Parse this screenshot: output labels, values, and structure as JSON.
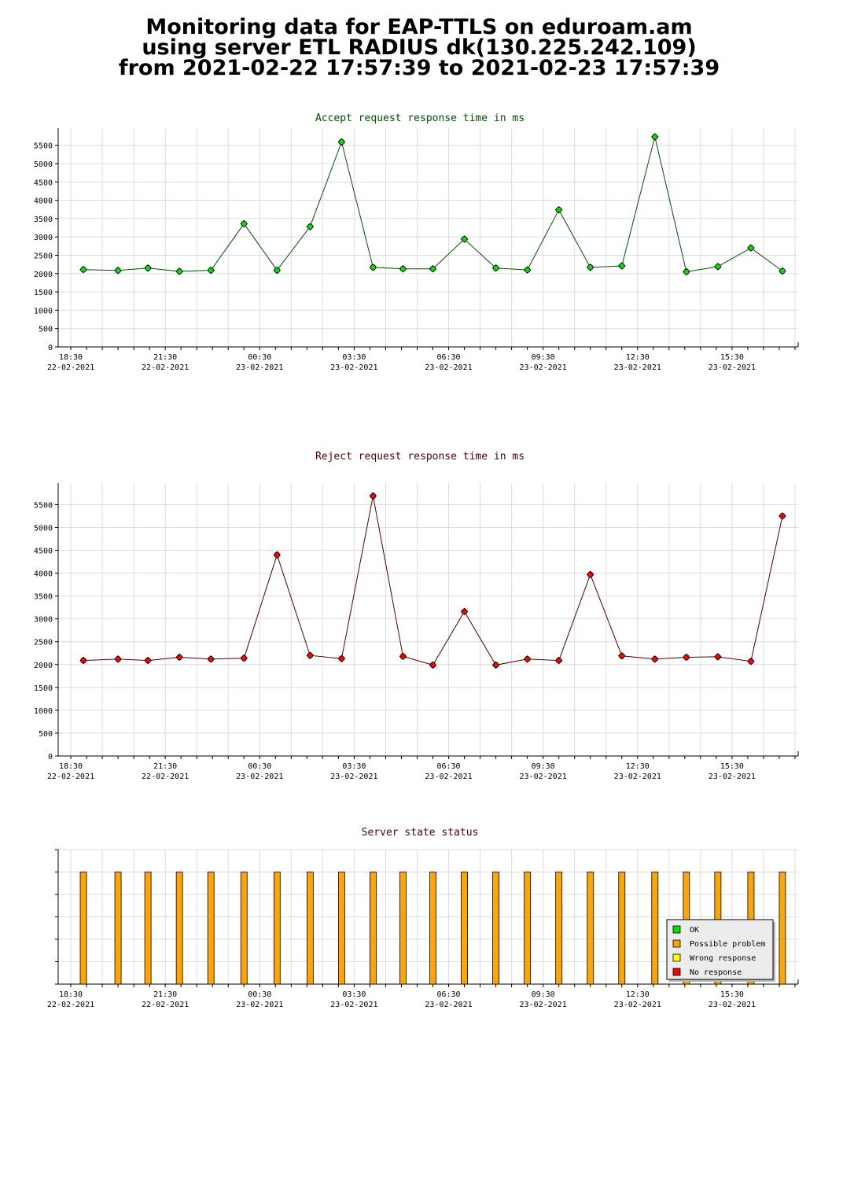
{
  "header": {
    "title_line1": "Monitoring data for EAP-TTLS on eduroam.am",
    "title_line2": "using server ETL RADIUS dk(130.225.242.109)",
    "title_line3": "from 2021-02-22 17:57:39 to 2021-02-23 17:57:39"
  },
  "x_ticks": [
    {
      "time": "18:30",
      "date": "22-02-2021",
      "h": 18.5
    },
    {
      "time": "21:30",
      "date": "22-02-2021",
      "h": 21.5
    },
    {
      "time": "00:30",
      "date": "23-02-2021",
      "h": 24.5
    },
    {
      "time": "03:30",
      "date": "23-02-2021",
      "h": 27.5
    },
    {
      "time": "06:30",
      "date": "23-02-2021",
      "h": 30.5
    },
    {
      "time": "09:30",
      "date": "23-02-2021",
      "h": 33.5
    },
    {
      "time": "12:30",
      "date": "23-02-2021",
      "h": 36.5
    },
    {
      "time": "15:30",
      "date": "23-02-2021",
      "h": 39.5
    }
  ],
  "chart_data": [
    {
      "type": "line",
      "title": "Accept request response time in ms",
      "title_color": "#005000",
      "line_color": "#005000",
      "marker_color": "#00e000",
      "yticks": [
        0,
        500,
        1000,
        1500,
        2000,
        2500,
        3000,
        3500,
        4000,
        4500,
        5000,
        5500
      ],
      "ylim": [
        0,
        5750
      ],
      "points": [
        {
          "x": 18.9,
          "y": 2110
        },
        {
          "x": 20.0,
          "y": 2085
        },
        {
          "x": 20.95,
          "y": 2150
        },
        {
          "x": 21.95,
          "y": 2060
        },
        {
          "x": 22.95,
          "y": 2090
        },
        {
          "x": 24.0,
          "y": 3360
        },
        {
          "x": 25.05,
          "y": 2090
        },
        {
          "x": 26.1,
          "y": 3280
        },
        {
          "x": 27.1,
          "y": 5590
        },
        {
          "x": 28.1,
          "y": 2170
        },
        {
          "x": 29.05,
          "y": 2130
        },
        {
          "x": 30.0,
          "y": 2130
        },
        {
          "x": 31.0,
          "y": 2940
        },
        {
          "x": 32.0,
          "y": 2150
        },
        {
          "x": 33.0,
          "y": 2100
        },
        {
          "x": 34.0,
          "y": 3740
        },
        {
          "x": 35.0,
          "y": 2170
        },
        {
          "x": 36.0,
          "y": 2210
        },
        {
          "x": 37.05,
          "y": 5730
        },
        {
          "x": 38.05,
          "y": 2050
        },
        {
          "x": 39.05,
          "y": 2190
        },
        {
          "x": 40.1,
          "y": 2700
        },
        {
          "x": 41.1,
          "y": 2070
        }
      ]
    },
    {
      "type": "line",
      "title": "Reject request response time in ms",
      "title_color": "#500000",
      "line_color": "#500000",
      "marker_color": "#ff0000",
      "yticks": [
        0,
        500,
        1000,
        1500,
        2000,
        2500,
        3000,
        3500,
        4000,
        4500,
        5000,
        5500
      ],
      "ylim": [
        0,
        5800
      ],
      "points": [
        {
          "x": 18.9,
          "y": 2090
        },
        {
          "x": 20.0,
          "y": 2120
        },
        {
          "x": 20.95,
          "y": 2090
        },
        {
          "x": 21.95,
          "y": 2160
        },
        {
          "x": 22.95,
          "y": 2120
        },
        {
          "x": 24.0,
          "y": 2140
        },
        {
          "x": 25.05,
          "y": 4400
        },
        {
          "x": 26.1,
          "y": 2200
        },
        {
          "x": 27.1,
          "y": 2130
        },
        {
          "x": 28.1,
          "y": 5690
        },
        {
          "x": 29.05,
          "y": 2180
        },
        {
          "x": 30.0,
          "y": 1990
        },
        {
          "x": 31.0,
          "y": 3160
        },
        {
          "x": 32.0,
          "y": 1990
        },
        {
          "x": 33.0,
          "y": 2120
        },
        {
          "x": 34.0,
          "y": 2090
        },
        {
          "x": 35.0,
          "y": 3970
        },
        {
          "x": 36.0,
          "y": 2190
        },
        {
          "x": 37.05,
          "y": 2120
        },
        {
          "x": 38.05,
          "y": 2160
        },
        {
          "x": 39.05,
          "y": 2170
        },
        {
          "x": 40.1,
          "y": 2070
        },
        {
          "x": 41.1,
          "y": 5250
        }
      ]
    },
    {
      "type": "bar",
      "title": "Server state status",
      "title_color": "#500000",
      "bar_color": "#ffa500",
      "bar_state": "Possible problem",
      "x": [
        18.9,
        20.0,
        20.95,
        21.95,
        22.95,
        24.0,
        25.05,
        26.1,
        27.1,
        28.1,
        29.05,
        30.0,
        31.0,
        32.0,
        33.0,
        34.0,
        35.0,
        36.0,
        37.05,
        38.05,
        39.05,
        40.1,
        41.1
      ],
      "legend": [
        {
          "label": "OK",
          "color": "#00e000"
        },
        {
          "label": "Possible problem",
          "color": "#ffa500"
        },
        {
          "label": "Wrong response",
          "color": "#ffff00"
        },
        {
          "label": "No response",
          "color": "#ff0000"
        }
      ],
      "legend_placement": "bottom-right",
      "grid": true
    }
  ]
}
